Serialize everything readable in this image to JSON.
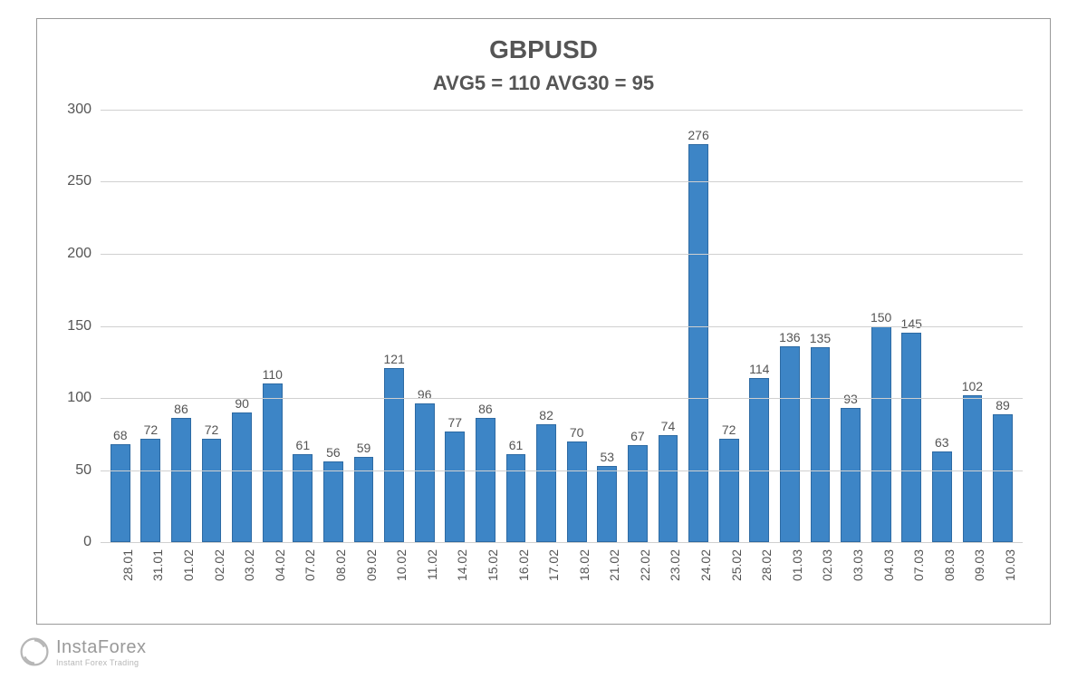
{
  "chart": {
    "type": "bar",
    "title": "GBPUSD",
    "subtitle": "AVG5 = 110 AVG30 = 95",
    "title_fontsize": 28,
    "subtitle_fontsize": 22,
    "title_color": "#555555",
    "background_color": "#ffffff",
    "border_color": "#999999",
    "grid_color": "#d0d0d0",
    "bar_color": "#3d85c6",
    "bar_border_color": "#2d6aa3",
    "text_color": "#555555",
    "label_fontsize": 14,
    "axis_fontsize": 16,
    "ylim": [
      0,
      300
    ],
    "ytick_step": 50,
    "yticks": [
      0,
      50,
      100,
      150,
      200,
      250,
      300
    ],
    "bar_width_ratio": 0.65,
    "categories": [
      "28.01",
      "31.01",
      "01.02",
      "02.02",
      "03.02",
      "04.02",
      "07.02",
      "08.02",
      "09.02",
      "10.02",
      "11.02",
      "14.02",
      "15.02",
      "16.02",
      "17.02",
      "18.02",
      "21.02",
      "22.02",
      "23.02",
      "24.02",
      "25.02",
      "28.02",
      "01.03",
      "02.03",
      "03.03",
      "04.03",
      "07.03",
      "08.03",
      "09.03",
      "10.03"
    ],
    "values": [
      68,
      72,
      86,
      72,
      90,
      110,
      61,
      56,
      59,
      121,
      96,
      77,
      86,
      61,
      82,
      70,
      53,
      67,
      74,
      276,
      72,
      114,
      136,
      135,
      93,
      150,
      145,
      63,
      102,
      89
    ]
  },
  "watermark": {
    "brand": "InstaForex",
    "tagline": "Instant Forex Trading",
    "color": "#888888"
  }
}
